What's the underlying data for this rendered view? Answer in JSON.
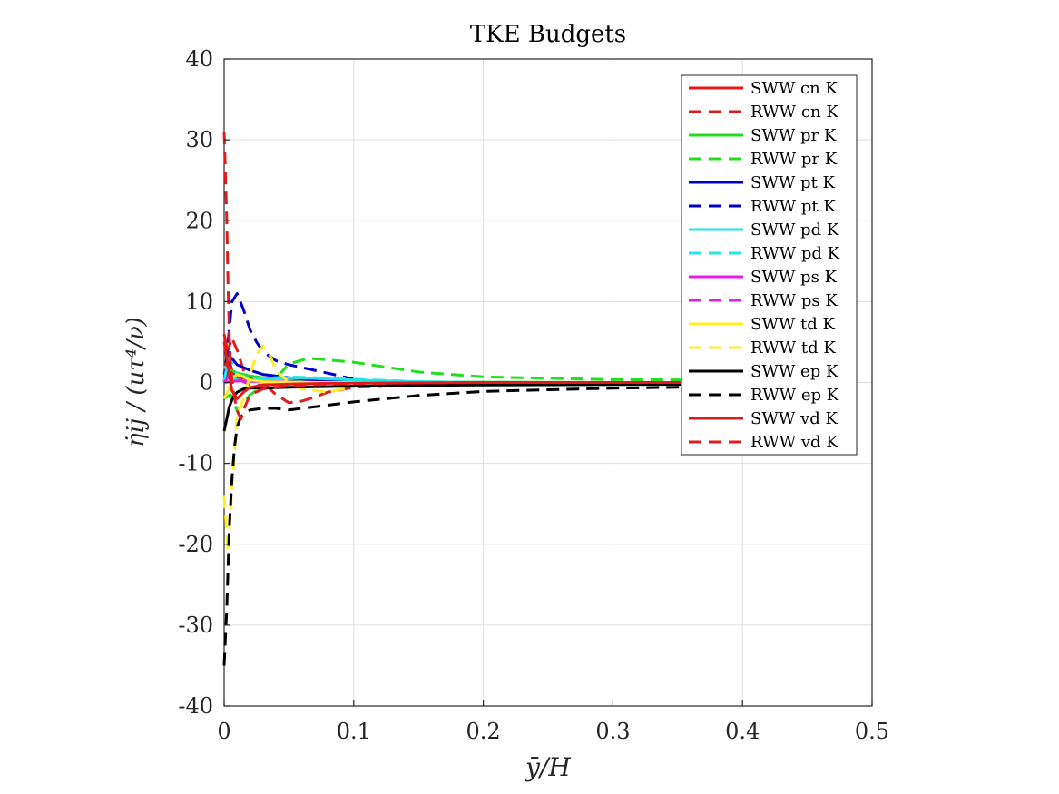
{
  "chart_data": {
    "type": "line",
    "title": "TKE Budgets",
    "xlabel": "ȳ/H",
    "ylabel": "η̇ij / (uτ⁴/ν)",
    "xlim": [
      0,
      0.5
    ],
    "ylim": [
      -40,
      40
    ],
    "xticks": [
      0,
      0.1,
      0.2,
      0.3,
      0.4,
      0.5
    ],
    "xtick_labels": [
      "0",
      "0.1",
      "0.2",
      "0.3",
      "0.4",
      "0.5"
    ],
    "yticks": [
      -40,
      -30,
      -20,
      -10,
      0,
      10,
      20,
      30,
      40
    ],
    "ytick_labels": [
      "-40",
      "-30",
      "-20",
      "-10",
      "0",
      "10",
      "20",
      "30",
      "40"
    ],
    "grid": true,
    "legend_position": "top-right",
    "series": [
      {
        "name": "SWW cn K",
        "color": "#e31a1c",
        "dash": "solid",
        "x": [
          0,
          0.003,
          0.006,
          0.01,
          0.02,
          0.03,
          0.05,
          0.08,
          0.12,
          0.2,
          0.3,
          0.4
        ],
        "y": [
          6,
          3.5,
          1.5,
          0.6,
          0.2,
          0.1,
          0.05,
          0.02,
          0.01,
          0,
          0,
          0
        ]
      },
      {
        "name": "RWW cn K",
        "color": "#e31a1c",
        "dash": "dashed",
        "x": [
          0,
          0.003,
          0.006,
          0.01,
          0.015,
          0.02,
          0.03,
          0.04,
          0.05,
          0.06,
          0.07,
          0.08,
          0.1,
          0.15,
          0.2,
          0.3,
          0.4
        ],
        "y": [
          1,
          4,
          5.5,
          4,
          1.5,
          0.5,
          0,
          -1.5,
          -2.5,
          -2.3,
          -1.8,
          -1.2,
          -0.6,
          -0.3,
          -0.2,
          -0.1,
          -0.05
        ]
      },
      {
        "name": "SWW pr K",
        "color": "#22dd22",
        "dash": "solid",
        "x": [
          0,
          0.003,
          0.006,
          0.01,
          0.02,
          0.03,
          0.05,
          0.08,
          0.12,
          0.2,
          0.3,
          0.4
        ],
        "y": [
          0,
          1,
          1.5,
          1.2,
          0.8,
          0.6,
          0.4,
          0.25,
          0.1,
          0.05,
          0,
          0
        ]
      },
      {
        "name": "RWW pr K",
        "color": "#22dd22",
        "dash": "dashed",
        "x": [
          0,
          0.005,
          0.01,
          0.02,
          0.03,
          0.04,
          0.05,
          0.065,
          0.08,
          0.1,
          0.15,
          0.2,
          0.3,
          0.4
        ],
        "y": [
          -2,
          -1.5,
          -3.5,
          -1.5,
          -0.5,
          0.5,
          2.3,
          3,
          2.8,
          2.5,
          1.3,
          0.7,
          0.35,
          0.3
        ]
      },
      {
        "name": "SWW pt K",
        "color": "#0000cc",
        "dash": "solid",
        "x": [
          0,
          0.003,
          0.006,
          0.01,
          0.02,
          0.03,
          0.04,
          0.05,
          0.07,
          0.1,
          0.15,
          0.2
        ],
        "y": [
          0,
          2,
          3,
          2.2,
          1.5,
          1.0,
          0.8,
          0.6,
          0.3,
          0.1,
          0,
          0
        ]
      },
      {
        "name": "RWW pt K",
        "color": "#0000cc",
        "dash": "dashed",
        "x": [
          0,
          0.003,
          0.006,
          0.01,
          0.015,
          0.02,
          0.025,
          0.03,
          0.04,
          0.05,
          0.07,
          0.09,
          0.1,
          0.12
        ],
        "y": [
          0,
          5,
          10,
          11,
          9,
          6.5,
          5,
          3.8,
          2.7,
          2.2,
          1.5,
          0.8,
          0.4,
          0.1
        ]
      },
      {
        "name": "SWW pd K",
        "color": "#22e5e5",
        "dash": "solid",
        "x": [
          0,
          0.003,
          0.006,
          0.01,
          0.02,
          0.03,
          0.05,
          0.07,
          0.1,
          0.15,
          0.2
        ],
        "y": [
          2,
          1.5,
          0.8,
          0.3,
          0.2,
          0.3,
          0.6,
          0.5,
          0.3,
          0.1,
          0
        ]
      },
      {
        "name": "RWW pd K",
        "color": "#22e5e5",
        "dash": "dashed",
        "x": [
          0,
          0.003,
          0.006,
          0.01,
          0.02,
          0.03,
          0.05,
          0.07,
          0.1,
          0.15,
          0.2
        ],
        "y": [
          0,
          3,
          2.5,
          1,
          0.5,
          0.5,
          0.7,
          0.6,
          0.4,
          0.1,
          0
        ]
      },
      {
        "name": "SWW ps K",
        "color": "#e51ee5",
        "dash": "solid",
        "x": [
          0,
          0.01,
          0.03,
          0.06,
          0.1,
          0.2,
          0.3,
          0.4
        ],
        "y": [
          0,
          0.2,
          0.1,
          0.05,
          0,
          0,
          0,
          0
        ]
      },
      {
        "name": "RWW ps K",
        "color": "#e51ee5",
        "dash": "dashed",
        "x": [
          0,
          0.005,
          0.01,
          0.02,
          0.03,
          0.05,
          0.08,
          0.12,
          0.2,
          0.3,
          0.4
        ],
        "y": [
          0,
          1,
          0.5,
          -0.3,
          -0.3,
          -0.2,
          -0.1,
          -0.05,
          0,
          0,
          0
        ]
      },
      {
        "name": "SWW td K",
        "color": "#ffee22",
        "dash": "solid",
        "x": [
          0,
          0.003,
          0.006,
          0.01,
          0.015,
          0.02,
          0.03,
          0.05,
          0.08,
          0.12,
          0.2
        ],
        "y": [
          -2,
          -1,
          0.5,
          1,
          0.7,
          0.3,
          0.1,
          0,
          0,
          0,
          0
        ]
      },
      {
        "name": "RWW td K",
        "color": "#ffee22",
        "dash": "dashed",
        "x": [
          0,
          0.003,
          0.006,
          0.01,
          0.015,
          0.02,
          0.025,
          0.03,
          0.035,
          0.04,
          0.05,
          0.06,
          0.08,
          0.1,
          0.15
        ],
        "y": [
          -14,
          -21,
          -13,
          -4,
          -2,
          1,
          3.5,
          4.5,
          3.5,
          1.5,
          0,
          -0.8,
          -1.2,
          -0.5,
          0
        ]
      },
      {
        "name": "SWW ep K",
        "color": "#000000",
        "dash": "solid",
        "x": [
          0,
          0.002,
          0.004,
          0.007,
          0.01,
          0.015,
          0.02,
          0.03,
          0.05,
          0.08,
          0.12,
          0.2,
          0.3,
          0.4,
          0.48
        ],
        "y": [
          -6,
          -4.5,
          -3,
          -1.8,
          -1.2,
          -0.8,
          -0.7,
          -0.7,
          -0.6,
          -0.5,
          -0.4,
          -0.3,
          -0.25,
          -0.2,
          -0.2
        ]
      },
      {
        "name": "RWW ep K",
        "color": "#000000",
        "dash": "dashed",
        "x": [
          0,
          0.002,
          0.004,
          0.006,
          0.008,
          0.01,
          0.013,
          0.016,
          0.02,
          0.03,
          0.04,
          0.05,
          0.06,
          0.08,
          0.1,
          0.15,
          0.2,
          0.25,
          0.3,
          0.35,
          0.4,
          0.48
        ],
        "y": [
          -35,
          -28,
          -18,
          -12,
          -8,
          -5.5,
          -4.2,
          -3.8,
          -3.4,
          -3.2,
          -3.2,
          -3.4,
          -3.2,
          -2.8,
          -2.4,
          -1.6,
          -1.1,
          -0.9,
          -0.7,
          -0.6,
          -0.5,
          -0.4
        ]
      },
      {
        "name": "SWW vd K",
        "color": "#e31a1c",
        "dash": "solid",
        "x": [
          0,
          0.003,
          0.006,
          0.01,
          0.015,
          0.02,
          0.03,
          0.05,
          0.08,
          0.12,
          0.2,
          0.3,
          0.4
        ],
        "y": [
          5,
          2,
          -1,
          -2,
          -1.2,
          -0.6,
          -0.3,
          -0.2,
          -0.1,
          -0.05,
          0,
          0,
          0
        ]
      },
      {
        "name": "RWW vd K",
        "color": "#e31a1c",
        "dash": "dashed",
        "x": [
          0,
          0.001,
          0.002,
          0.003,
          0.004,
          0.005,
          0.007,
          0.01,
          0.013,
          0.016,
          0.02,
          0.03,
          0.05,
          0.08,
          0.12,
          0.2
        ],
        "y": [
          31,
          26,
          20,
          12,
          6,
          2,
          -1,
          -3.5,
          -4.5,
          -3,
          -1.5,
          -0.8,
          -0.4,
          -0.2,
          -0.1,
          0
        ]
      }
    ]
  }
}
